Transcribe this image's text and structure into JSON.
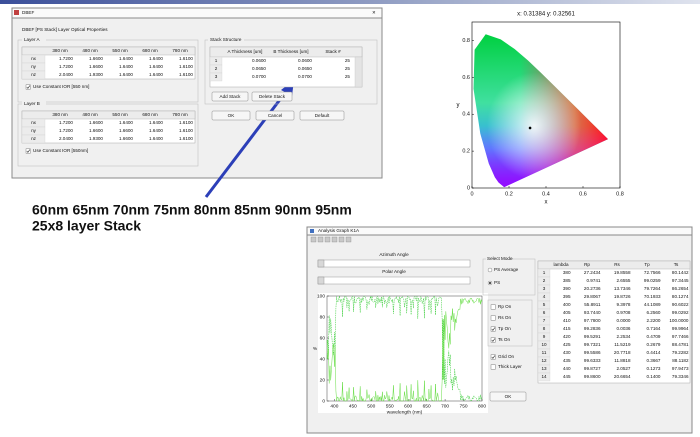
{
  "dbef_window": {
    "title": "DBEF",
    "header": "DBEF [PS Stack] Layer Optical Properties",
    "layer_a": {
      "title": "Layer A",
      "columns": [
        "380 nm",
        "480 nm",
        "550 nm",
        "680 nm",
        "780 nm"
      ],
      "rows": [
        {
          "label": "nx",
          "values": [
            "1.7200",
            "1.6600",
            "1.6400",
            "1.6400",
            "1.6100"
          ]
        },
        {
          "label": "ny",
          "values": [
            "1.7200",
            "1.6600",
            "1.6400",
            "1.6400",
            "1.6100"
          ]
        },
        {
          "label": "nz",
          "values": [
            "2.0400",
            "1.9300",
            "1.6400",
            "1.6400",
            "1.6100"
          ]
        }
      ],
      "checkbox": "Use Constant IOR [550 nm]"
    },
    "layer_b": {
      "title": "Layer B",
      "columns": [
        "380 nm",
        "480 nm",
        "550 nm",
        "680 nm",
        "780 nm"
      ],
      "rows": [
        {
          "label": "nx",
          "values": [
            "1.7200",
            "1.6600",
            "1.6400",
            "1.6400",
            "1.6100"
          ]
        },
        {
          "label": "ny",
          "values": [
            "1.7200",
            "1.6600",
            "1.6600",
            "1.6400",
            "1.6100"
          ]
        },
        {
          "label": "nz",
          "values": [
            "2.0400",
            "1.9300",
            "1.6600",
            "1.6400",
            "1.6100"
          ]
        }
      ],
      "checkbox": "Use Constant IOR [550nm]"
    },
    "stack": {
      "title": "Stack Structure",
      "columns": [
        "A Thickness [um]",
        "B Thickness [um]",
        "Stack #"
      ],
      "rows": [
        [
          "1",
          "0.0600",
          "0.0600",
          "25"
        ],
        [
          "2",
          "0.0650",
          "0.0650",
          "25"
        ],
        [
          "3",
          "0.0700",
          "0.0700",
          "25"
        ]
      ]
    },
    "buttons": {
      "add": "Add Stack",
      "delete": "Delete Stack",
      "ok": "OK",
      "cancel": "Cancel",
      "default": "Default"
    }
  },
  "annotation": {
    "line1": "60nm 65nm 70nm 75nm 80nm 85nm 90nm 95nm",
    "line2": "25x8 layer Stack"
  },
  "cie_plot": {
    "title": "x: 0.31384 y: 0.32561",
    "x_label": "x",
    "y_label": "y",
    "xlim": [
      0,
      0.8
    ],
    "ylim": [
      0,
      0.9
    ],
    "xticks": [
      0,
      0.2,
      0.4,
      0.6,
      0.8
    ],
    "yticks": [
      0,
      0.2,
      0.4,
      0.6,
      0.8
    ],
    "point": {
      "x": 0.31384,
      "y": 0.32561
    }
  },
  "analysis_window": {
    "title": "Analysis Graph K1A",
    "azimuth_label": "Azimuth Angle",
    "polar_label": "Polar Angle",
    "select_mode": {
      "title": "Select Mode",
      "options": [
        "PS Average",
        "PS"
      ]
    },
    "graph": {
      "x_label": "wavelength (nm)",
      "y_label": "%",
      "xlim": [
        380,
        800
      ],
      "xticks": [
        400,
        450,
        500,
        550,
        600,
        650,
        700,
        750,
        800
      ],
      "ylim": [
        0,
        100
      ],
      "yticks": [
        0,
        20,
        40,
        60,
        80,
        100
      ]
    },
    "curve_toggles": [
      "Rp On",
      "Rs On",
      "Tp On",
      "Ts On"
    ],
    "options": [
      "Grid On",
      "Thick Layer"
    ],
    "ok": "OK",
    "table": {
      "columns": [
        "lambda",
        "Rp",
        "Rs",
        "Tp",
        "Ts"
      ],
      "rows": [
        [
          "1",
          "380",
          "27.2434",
          "19.8558",
          "72.7566",
          "80.1442"
        ],
        [
          "2",
          "385",
          "0.9741",
          "2.6555",
          "99.0259",
          "97.3445"
        ],
        [
          "3",
          "390",
          "20.2736",
          "13.7346",
          "79.7264",
          "86.2654"
        ],
        [
          "4",
          "395",
          "29.8067",
          "19.8726",
          "70.1933",
          "80.1274"
        ],
        [
          "5",
          "400",
          "55.8911",
          "9.3978",
          "44.1089",
          "90.6022"
        ],
        [
          "6",
          "405",
          "93.7440",
          "0.9708",
          "6.2560",
          "99.0292"
        ],
        [
          "7",
          "410",
          "97.7800",
          "0.0000",
          "2.2200",
          "100.0000"
        ],
        [
          "8",
          "415",
          "99.2836",
          "0.0036",
          "0.7164",
          "99.9964"
        ],
        [
          "9",
          "420",
          "99.5291",
          "2.2534",
          "0.4709",
          "97.7466"
        ],
        [
          "10",
          "425",
          "99.7321",
          "11.5219",
          "0.2679",
          "88.4781"
        ],
        [
          "11",
          "430",
          "99.5586",
          "20.7718",
          "0.4414",
          "79.2282"
        ],
        [
          "12",
          "435",
          "99.6333",
          "11.8818",
          "0.3667",
          "88.1182"
        ],
        [
          "13",
          "440",
          "99.8727",
          "2.0527",
          "0.1273",
          "97.9473"
        ],
        [
          "14",
          "445",
          "99.8600",
          "20.6654",
          "0.1400",
          "79.3346"
        ]
      ]
    }
  }
}
